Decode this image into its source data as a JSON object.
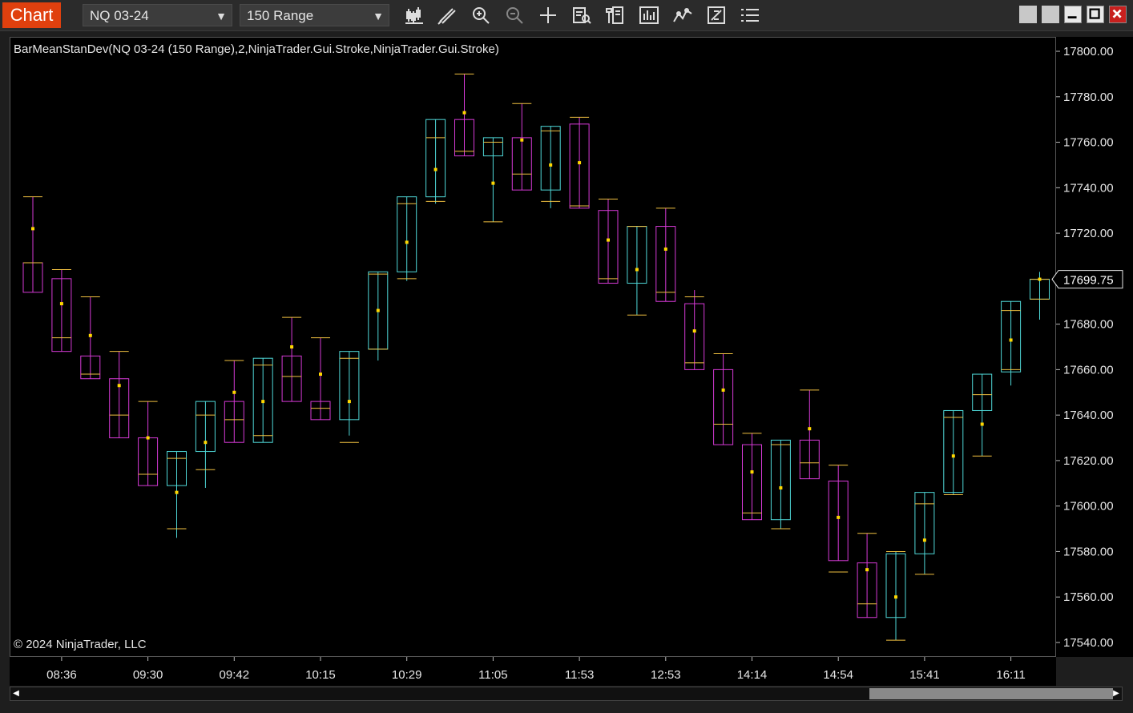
{
  "toolbar": {
    "tab_label": "Chart",
    "instrument": "NQ 03-24",
    "bar_type": "150 Range",
    "tools": [
      "bar-style-icon",
      "draw-pencil-icon",
      "zoom-in-icon",
      "zoom-out-icon",
      "crosshair-icon",
      "data-box-icon",
      "properties-icon",
      "strategies-icon",
      "indicators-icon",
      "chart-trader-icon",
      "menu-list-icon"
    ]
  },
  "indicator_label": "BarMeanStanDev(NQ 03-24 (150 Range),2,NinjaTrader.Gui.Stroke,NinjaTrader.Gui.Stroke)",
  "copyright": "© 2024 NinjaTrader, LLC",
  "colors": {
    "up": "#4fd8d8",
    "down": "#d63ad6",
    "whisker": "#f0c040",
    "mean": "#ffd700",
    "background": "#000000",
    "last_price_box": "#000000"
  },
  "chart_data": {
    "type": "candlestick",
    "y_axis_labels": [
      "17800.00",
      "17780.00",
      "17760.00",
      "17740.00",
      "17720.00",
      "17700.00",
      "17680.00",
      "17660.00",
      "17640.00",
      "17620.00",
      "17600.00",
      "17580.00",
      "17560.00",
      "17540.00"
    ],
    "y_ticks": [
      17800,
      17780,
      17760,
      17740,
      17720,
      17700,
      17680,
      17660,
      17640,
      17620,
      17600,
      17580,
      17560,
      17540
    ],
    "ylim": [
      17534,
      17806
    ],
    "x_labels": [
      {
        "label": "08:36",
        "bar": 1
      },
      {
        "label": "09:30",
        "bar": 4
      },
      {
        "label": "09:42",
        "bar": 7
      },
      {
        "label": "10:15",
        "bar": 10
      },
      {
        "label": "10:29",
        "bar": 13
      },
      {
        "label": "11:05",
        "bar": 16
      },
      {
        "label": "11:53",
        "bar": 19
      },
      {
        "label": "12:53",
        "bar": 22
      },
      {
        "label": "14:14",
        "bar": 25
      },
      {
        "label": "14:54",
        "bar": 28
      },
      {
        "label": "15:41",
        "bar": 31
      },
      {
        "label": "16:11",
        "bar": 34
      }
    ],
    "last_price": "17699.75",
    "last_price_value": 17699.75,
    "bars": [
      {
        "o": 17707,
        "c": 17694,
        "h": 17736,
        "l": 17694,
        "mean": 17722,
        "sd_hi": 17736,
        "sd_lo": 17707,
        "dir": "down"
      },
      {
        "o": 17700,
        "c": 17668,
        "h": 17704,
        "l": 17668,
        "mean": 17689,
        "sd_hi": 17704,
        "sd_lo": 17674,
        "dir": "down"
      },
      {
        "o": 17666,
        "c": 17656,
        "h": 17692,
        "l": 17656,
        "mean": 17675,
        "sd_hi": 17692,
        "sd_lo": 17658,
        "dir": "down"
      },
      {
        "o": 17656,
        "c": 17630,
        "h": 17668,
        "l": 17630,
        "mean": 17653,
        "sd_hi": 17668,
        "sd_lo": 17640,
        "dir": "down"
      },
      {
        "o": 17630,
        "c": 17609,
        "h": 17646,
        "l": 17609,
        "mean": 17630,
        "sd_hi": 17646,
        "sd_lo": 17614,
        "dir": "down"
      },
      {
        "o": 17609,
        "c": 17624,
        "h": 17624,
        "l": 17586,
        "mean": 17606,
        "sd_hi": 17621,
        "sd_lo": 17590,
        "dir": "up"
      },
      {
        "o": 17624,
        "c": 17646,
        "h": 17646,
        "l": 17608,
        "mean": 17628,
        "sd_hi": 17640,
        "sd_lo": 17616,
        "dir": "up"
      },
      {
        "o": 17646,
        "c": 17628,
        "h": 17664,
        "l": 17628,
        "mean": 17650,
        "sd_hi": 17664,
        "sd_lo": 17638,
        "dir": "down"
      },
      {
        "o": 17628,
        "c": 17665,
        "h": 17665,
        "l": 17628,
        "mean": 17646,
        "sd_hi": 17662,
        "sd_lo": 17631,
        "dir": "up"
      },
      {
        "o": 17666,
        "c": 17646,
        "h": 17683,
        "l": 17646,
        "mean": 17670,
        "sd_hi": 17683,
        "sd_lo": 17657,
        "dir": "down"
      },
      {
        "o": 17646,
        "c": 17638,
        "h": 17674,
        "l": 17638,
        "mean": 17658,
        "sd_hi": 17674,
        "sd_lo": 17643,
        "dir": "down"
      },
      {
        "o": 17638,
        "c": 17668,
        "h": 17668,
        "l": 17631,
        "mean": 17646,
        "sd_hi": 17665,
        "sd_lo": 17628,
        "dir": "up"
      },
      {
        "o": 17669,
        "c": 17703,
        "h": 17703,
        "l": 17664,
        "mean": 17686,
        "sd_hi": 17702,
        "sd_lo": 17669,
        "dir": "up"
      },
      {
        "o": 17703,
        "c": 17736,
        "h": 17736,
        "l": 17699,
        "mean": 17716,
        "sd_hi": 17733,
        "sd_lo": 17700,
        "dir": "up"
      },
      {
        "o": 17736,
        "c": 17770,
        "h": 17770,
        "l": 17733,
        "mean": 17748,
        "sd_hi": 17762,
        "sd_lo": 17734,
        "dir": "up"
      },
      {
        "o": 17770,
        "c": 17754,
        "h": 17790,
        "l": 17754,
        "mean": 17773,
        "sd_hi": 17790,
        "sd_lo": 17756,
        "dir": "down"
      },
      {
        "o": 17754,
        "c": 17762,
        "h": 17762,
        "l": 17725,
        "mean": 17742,
        "sd_hi": 17760,
        "sd_lo": 17725,
        "dir": "up"
      },
      {
        "o": 17762,
        "c": 17739,
        "h": 17777,
        "l": 17739,
        "mean": 17761,
        "sd_hi": 17777,
        "sd_lo": 17746,
        "dir": "down"
      },
      {
        "o": 17739,
        "c": 17767,
        "h": 17767,
        "l": 17731,
        "mean": 17750,
        "sd_hi": 17765,
        "sd_lo": 17734,
        "dir": "up"
      },
      {
        "o": 17768,
        "c": 17731,
        "h": 17771,
        "l": 17731,
        "mean": 17751,
        "sd_hi": 17771,
        "sd_lo": 17732,
        "dir": "down"
      },
      {
        "o": 17730,
        "c": 17698,
        "h": 17735,
        "l": 17698,
        "mean": 17717,
        "sd_hi": 17735,
        "sd_lo": 17700,
        "dir": "down"
      },
      {
        "o": 17698,
        "c": 17723,
        "h": 17723,
        "l": 17684,
        "mean": 17704,
        "sd_hi": 17723,
        "sd_lo": 17684,
        "dir": "up"
      },
      {
        "o": 17723,
        "c": 17690,
        "h": 17731,
        "l": 17690,
        "mean": 17713,
        "sd_hi": 17731,
        "sd_lo": 17694,
        "dir": "down"
      },
      {
        "o": 17689,
        "c": 17660,
        "h": 17695,
        "l": 17660,
        "mean": 17677,
        "sd_hi": 17692,
        "sd_lo": 17663,
        "dir": "down"
      },
      {
        "o": 17660,
        "c": 17627,
        "h": 17667,
        "l": 17627,
        "mean": 17651,
        "sd_hi": 17667,
        "sd_lo": 17636,
        "dir": "down"
      },
      {
        "o": 17627,
        "c": 17594,
        "h": 17632,
        "l": 17594,
        "mean": 17615,
        "sd_hi": 17632,
        "sd_lo": 17597,
        "dir": "down"
      },
      {
        "o": 17594,
        "c": 17629,
        "h": 17629,
        "l": 17590,
        "mean": 17608,
        "sd_hi": 17627,
        "sd_lo": 17590,
        "dir": "up"
      },
      {
        "o": 17629,
        "c": 17612,
        "h": 17651,
        "l": 17612,
        "mean": 17634,
        "sd_hi": 17651,
        "sd_lo": 17619,
        "dir": "down"
      },
      {
        "o": 17611,
        "c": 17576,
        "h": 17618,
        "l": 17576,
        "mean": 17595,
        "sd_hi": 17618,
        "sd_lo": 17571,
        "dir": "down"
      },
      {
        "o": 17575,
        "c": 17551,
        "h": 17588,
        "l": 17551,
        "mean": 17572,
        "sd_hi": 17588,
        "sd_lo": 17557,
        "dir": "down"
      },
      {
        "o": 17551,
        "c": 17579,
        "h": 17580,
        "l": 17541,
        "mean": 17560,
        "sd_hi": 17580,
        "sd_lo": 17541,
        "dir": "up"
      },
      {
        "o": 17579,
        "c": 17606,
        "h": 17606,
        "l": 17570,
        "mean": 17585,
        "sd_hi": 17601,
        "sd_lo": 17570,
        "dir": "up"
      },
      {
        "o": 17606,
        "c": 17642,
        "h": 17642,
        "l": 17605,
        "mean": 17622,
        "sd_hi": 17639,
        "sd_lo": 17605,
        "dir": "up"
      },
      {
        "o": 17642,
        "c": 17658,
        "h": 17658,
        "l": 17622,
        "mean": 17636,
        "sd_hi": 17649,
        "sd_lo": 17622,
        "dir": "up"
      },
      {
        "o": 17659,
        "c": 17690,
        "h": 17690,
        "l": 17653,
        "mean": 17673,
        "sd_hi": 17686,
        "sd_lo": 17660,
        "dir": "up"
      },
      {
        "o": 17691,
        "c": 17699.75,
        "h": 17703,
        "l": 17682,
        "mean": 17699.75,
        "sd_hi": 17699.75,
        "sd_lo": 17691,
        "dir": "up"
      }
    ]
  }
}
